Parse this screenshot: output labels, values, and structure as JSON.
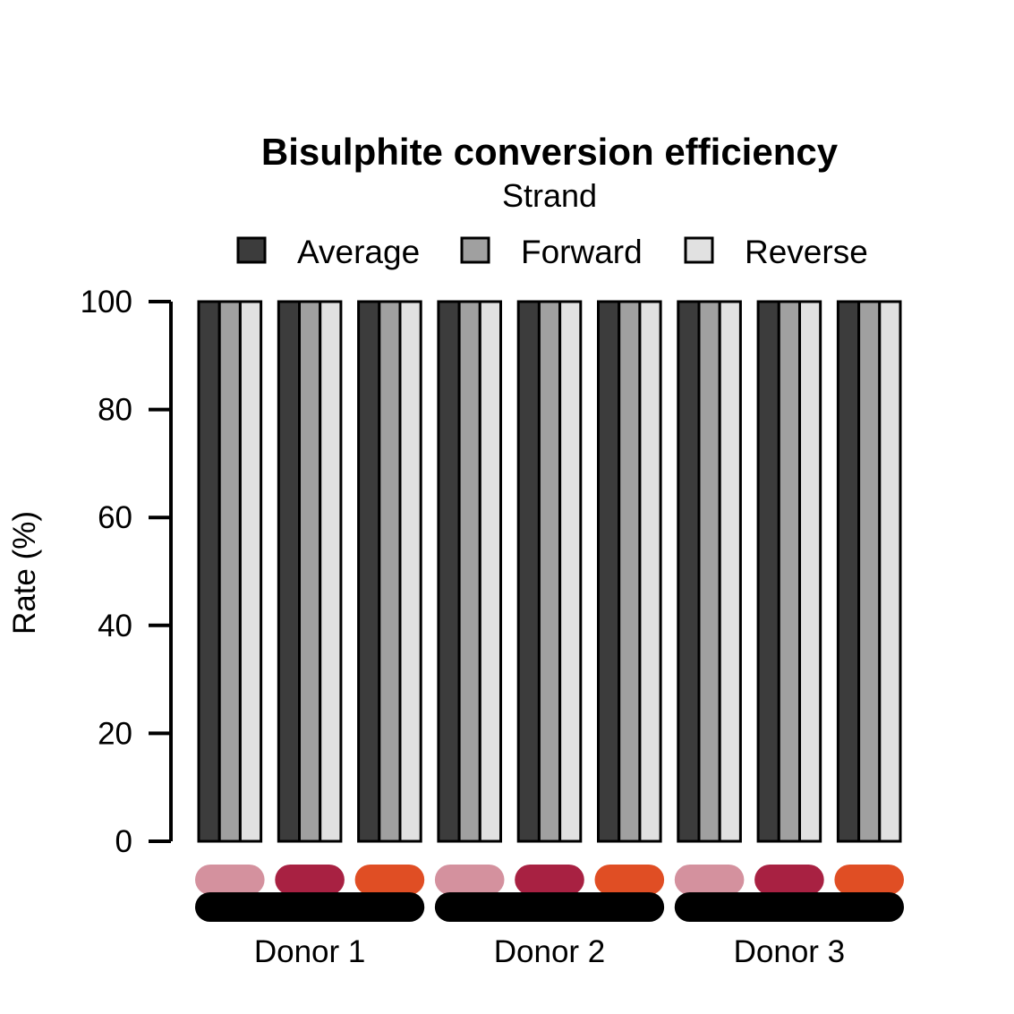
{
  "chart_data": {
    "type": "bar",
    "title": "Bisulphite conversion efficiency",
    "ylabel": "Rate (%)",
    "xlabel": "",
    "ylim": [
      0,
      100
    ],
    "yticks": [
      0,
      20,
      40,
      60,
      80,
      100
    ],
    "legend": {
      "title": "Strand",
      "placement": "top"
    },
    "series": [
      {
        "name": "Average",
        "color": "#3c3c3c",
        "values": [
          100,
          100,
          100,
          100,
          100,
          100,
          100,
          100,
          100
        ]
      },
      {
        "name": "Forward",
        "color": "#a0a0a0",
        "values": [
          100,
          100,
          100,
          100,
          100,
          100,
          100,
          100,
          100
        ]
      },
      {
        "name": "Reverse",
        "color": "#e1e1e1",
        "values": [
          100,
          100,
          100,
          100,
          100,
          100,
          100,
          100,
          100
        ]
      }
    ],
    "sample_colors": [
      "#d4919e",
      "#a82142",
      "#e04e24",
      "#d4919e",
      "#a82142",
      "#e04e24",
      "#d4919e",
      "#a82142",
      "#e04e24"
    ],
    "groups": [
      {
        "label": "Donor 1",
        "samples": 3,
        "color": "#000000"
      },
      {
        "label": "Donor 2",
        "samples": 3,
        "color": "#000000"
      },
      {
        "label": "Donor 3",
        "samples": 3,
        "color": "#000000"
      }
    ]
  }
}
